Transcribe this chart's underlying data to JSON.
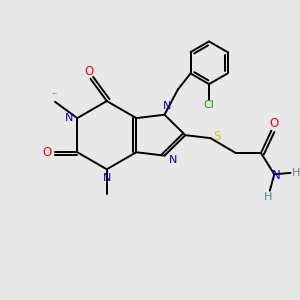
{
  "bg_color": "#e8e8e8",
  "atom_colors": {
    "N": "#0000cc",
    "O": "#ff0000",
    "S": "#cccc00",
    "Cl": "#00aa00",
    "C": "#000000",
    "H": "#558888",
    "NH": "#558888"
  },
  "bond_color": "#000000",
  "figsize": [
    3.0,
    3.0
  ],
  "dpi": 100
}
